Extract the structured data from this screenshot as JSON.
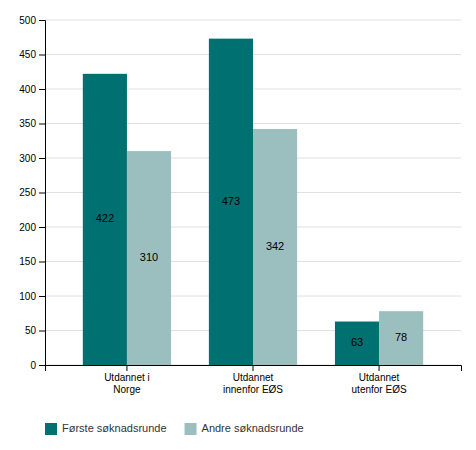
{
  "chart_data": {
    "type": "bar",
    "categories": [
      "Utdannet i\nNorge",
      "Utdannet\ninnenfor EØS",
      "Utdannet\nutenfor EØS"
    ],
    "series": [
      {
        "name": "Første søknadsrunde",
        "color": "#007070",
        "values": [
          422,
          473,
          63
        ]
      },
      {
        "name": "Andre søknadsrunde",
        "color": "#9BBFBF",
        "values": [
          310,
          342,
          78
        ]
      }
    ],
    "ylim": [
      0,
      500
    ],
    "yticks": [
      0,
      50,
      100,
      150,
      200,
      250,
      300,
      350,
      400,
      450,
      500
    ],
    "grid": true,
    "legend": "bottom",
    "data_labels": true
  }
}
